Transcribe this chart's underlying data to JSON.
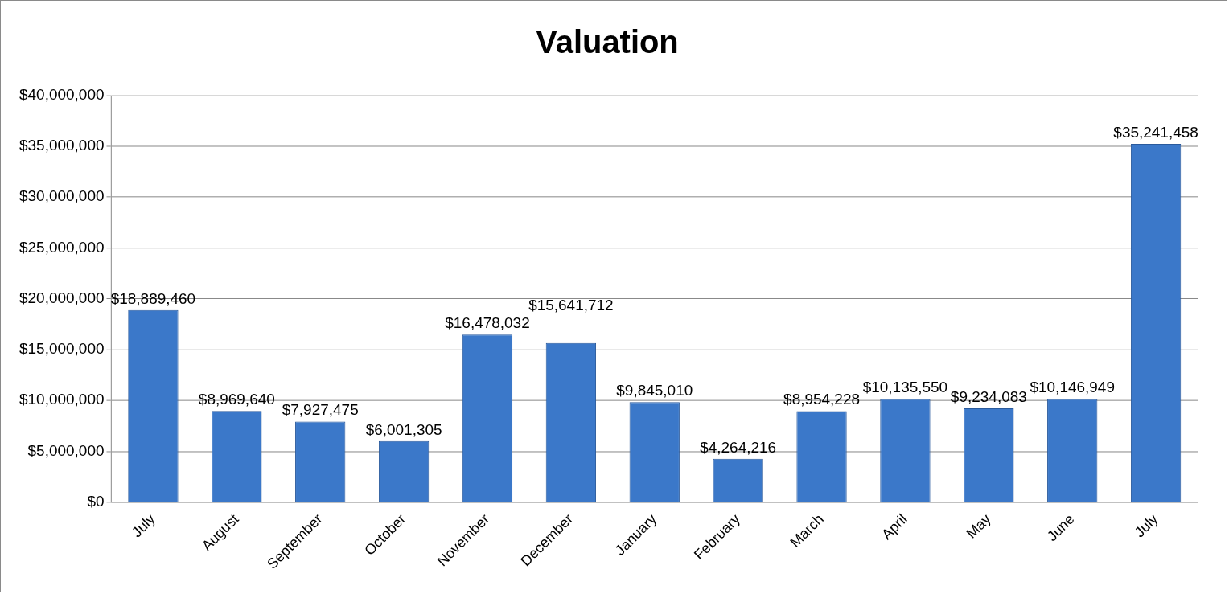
{
  "chart_data": {
    "type": "bar",
    "title": "Valuation",
    "categories": [
      "July",
      "August",
      "September",
      "October",
      "November",
      "December",
      "January",
      "February",
      "March",
      "April",
      "May",
      "June",
      "July"
    ],
    "values": [
      18889460,
      8969640,
      7927475,
      6001305,
      16478032,
      15641712,
      9845010,
      4264216,
      8954228,
      10135550,
      9234083,
      10146949,
      35241458
    ],
    "value_labels": [
      "$18,889,460",
      "$8,969,640",
      "$7,927,475",
      "$6,001,305",
      "$16,478,032",
      "$15,641,712",
      "$9,845,010",
      "$4,264,216",
      "$8,954,228",
      "$10,135,550",
      "$9,234,083",
      "$10,146,949",
      "$35,241,458"
    ],
    "color": "#3b78c9",
    "ylim": [
      0,
      40000000
    ],
    "yticks": [
      {
        "value": 0,
        "label": "$0"
      },
      {
        "value": 5000000,
        "label": "$5,000,000"
      },
      {
        "value": 10000000,
        "label": "$10,000,000"
      },
      {
        "value": 15000000,
        "label": "$15,000,000"
      },
      {
        "value": 20000000,
        "label": "$20,000,000"
      },
      {
        "value": 25000000,
        "label": "$25,000,000"
      },
      {
        "value": 30000000,
        "label": "$30,000,000"
      },
      {
        "value": 35000000,
        "label": "$35,000,000"
      },
      {
        "value": 40000000,
        "label": "$40,000,000"
      }
    ],
    "grid": "y",
    "legend": false
  }
}
